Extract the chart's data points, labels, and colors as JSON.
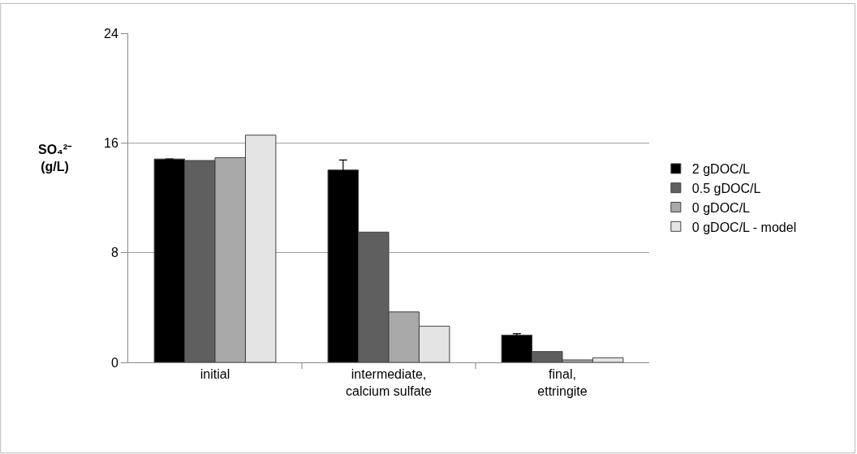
{
  "chart_data": {
    "type": "bar",
    "ylabel": "SO₄²⁻\n(g/L)",
    "categories": [
      "initial",
      "intermediate,\ncalcium sulfate",
      "final,\nettringite"
    ],
    "series": [
      {
        "name": "2 gDOC/L",
        "color": "#000000",
        "values": [
          14.83,
          14.03,
          1.99
        ],
        "errors": [
          null,
          0.73,
          0.1
        ]
      },
      {
        "name": "0.5 gDOC/L",
        "color": "#5f5f5f",
        "values": [
          14.72,
          9.5,
          0.79
        ]
      },
      {
        "name": "0 gDOC/L",
        "color": "#a9a9a9",
        "values": [
          14.93,
          3.68,
          0.18
        ]
      },
      {
        "name": "0 gDOC/L - model",
        "color": "#e4e4e4",
        "values": [
          16.57,
          2.64,
          0.34
        ]
      }
    ],
    "ylim": [
      0,
      24
    ],
    "yticks": [
      0,
      8,
      16,
      24
    ],
    "grid": "y",
    "legend": "right"
  }
}
